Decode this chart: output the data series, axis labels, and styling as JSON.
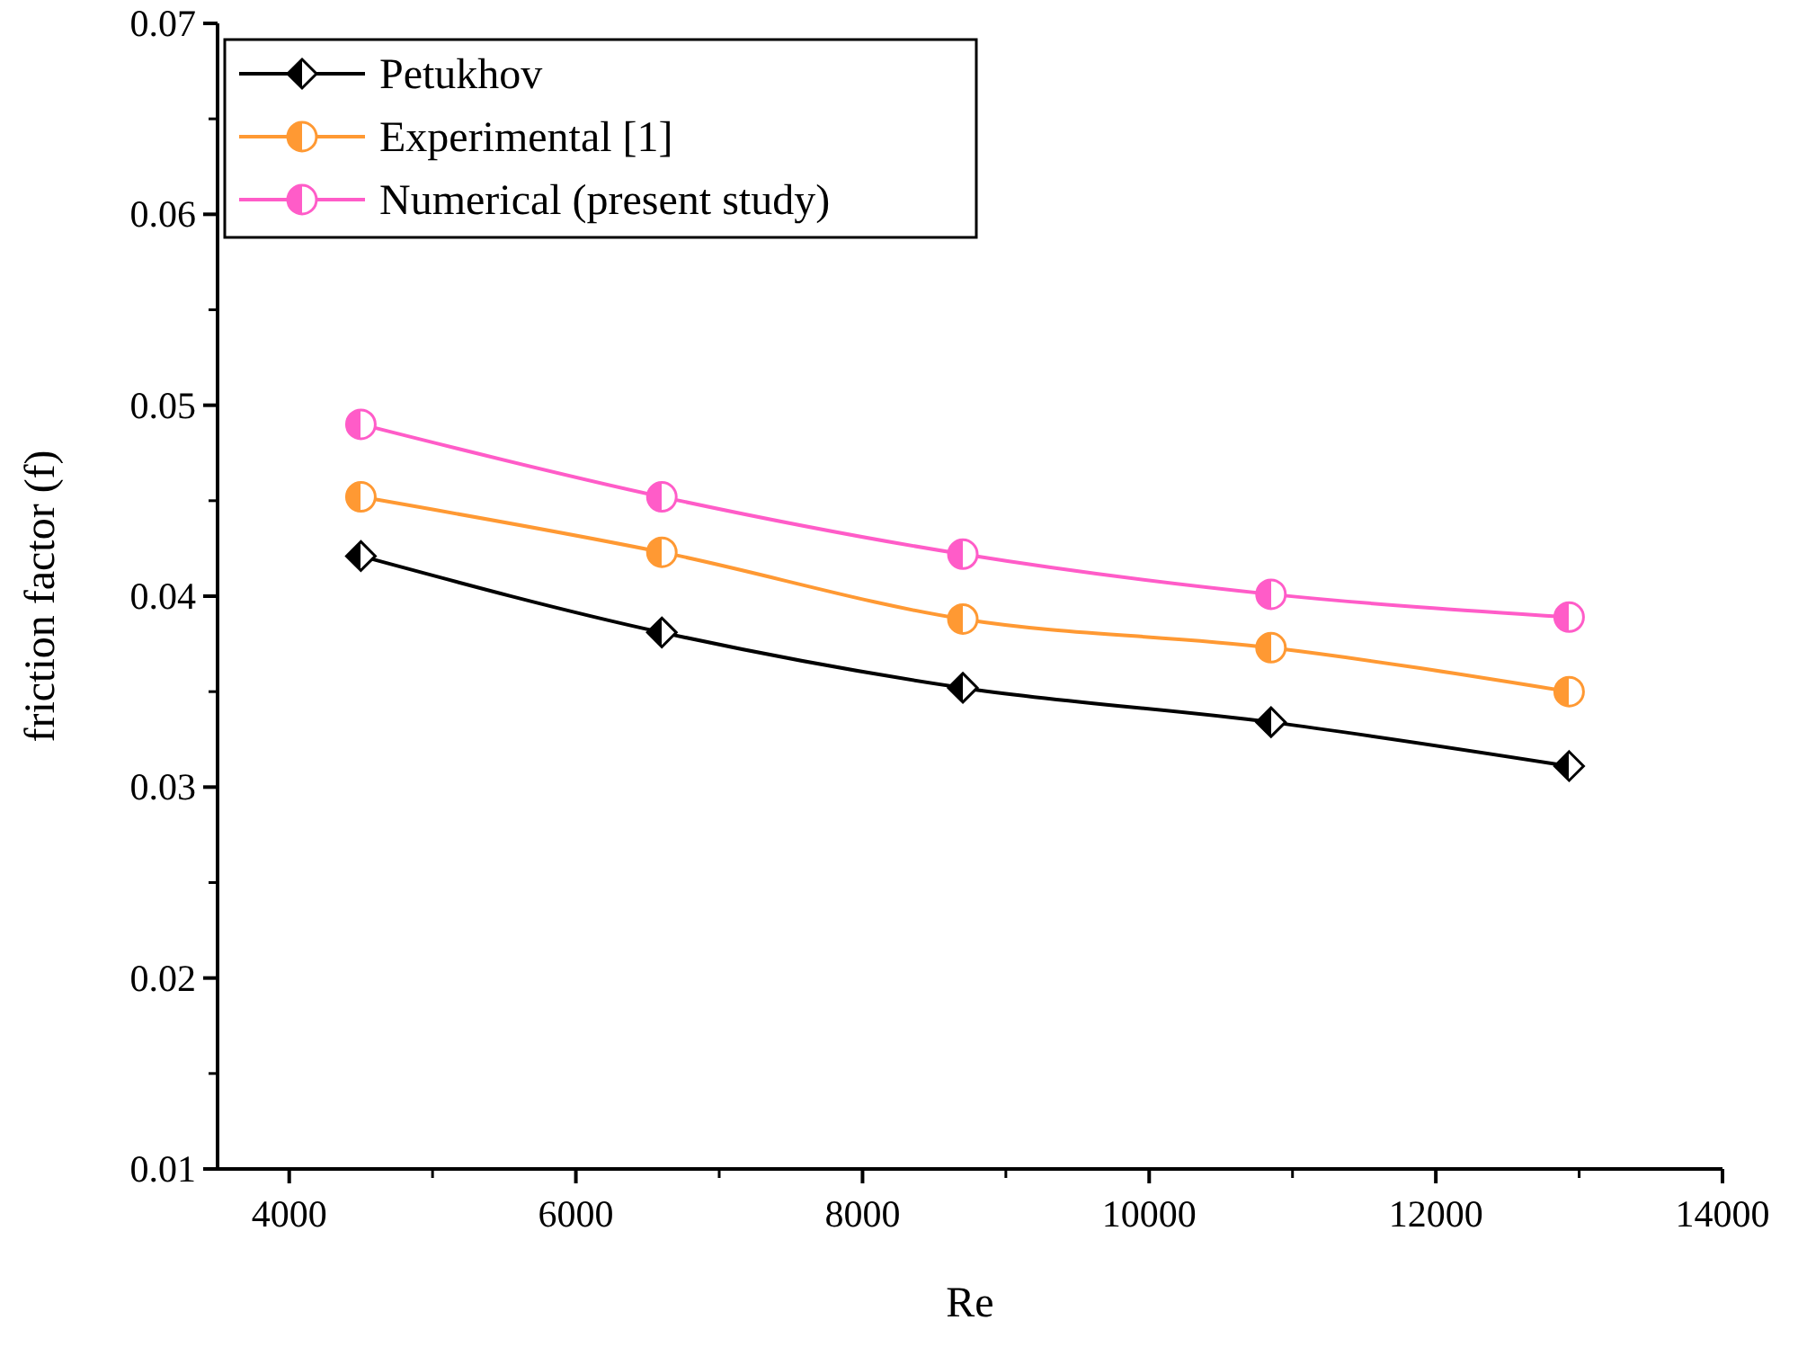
{
  "chart_data": {
    "type": "line",
    "xlabel": "Re",
    "ylabel": "friction factor (f)",
    "x": [
      4500,
      6600,
      8700,
      10850,
      12930
    ],
    "xlim": [
      3500,
      14000
    ],
    "xticks": [
      4000,
      6000,
      8000,
      10000,
      12000,
      14000
    ],
    "ylim": [
      0.01,
      0.07
    ],
    "yticks": [
      0.01,
      0.02,
      0.03,
      0.04,
      0.05,
      0.06,
      0.07
    ],
    "grid": false,
    "legend": "top left",
    "line_style": "solid",
    "series": [
      {
        "name": "Petukhov",
        "color": "#000000",
        "marker": "diamond",
        "values": [
          0.0421,
          0.0381,
          0.0352,
          0.0334,
          0.0311
        ]
      },
      {
        "name": "Experimental [1]",
        "color": "#ff9933",
        "marker": "circle",
        "values": [
          0.0452,
          0.0423,
          0.0388,
          0.0373,
          0.035
        ]
      },
      {
        "name": "Numerical (present study)",
        "color": "#ff5cc8",
        "marker": "circle",
        "values": [
          0.049,
          0.0452,
          0.0422,
          0.0401,
          0.0389
        ]
      }
    ]
  }
}
